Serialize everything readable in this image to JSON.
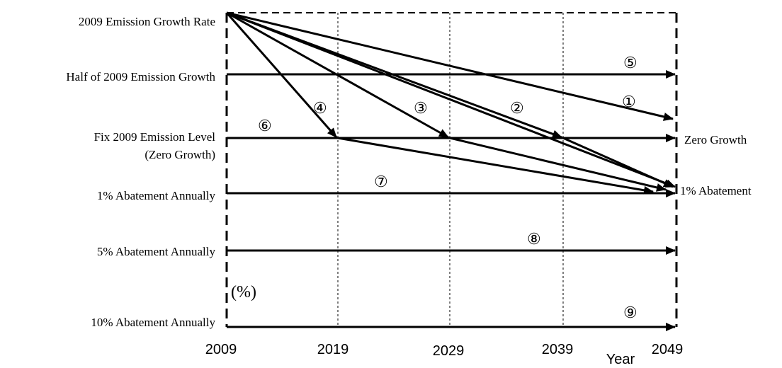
{
  "row_labels": [
    "2009 Emission Growth Rate",
    "Half of 2009 Emission Growth",
    "Fix 2009 Emission Level",
    "(Zero Growth)",
    "1% Abatement Annually",
    "5% Abatement Annually",
    "10% Abatement Annually"
  ],
  "years": [
    "2009",
    "2019",
    "2029",
    "2039",
    "2049"
  ],
  "axis_label": "Year",
  "unit": "(%)",
  "end_labels": [
    "Zero Growth",
    "1% Abatement"
  ],
  "scenarios": [
    "⑤",
    "①",
    "④",
    "③",
    "②",
    "⑥",
    "⑦",
    "⑧",
    "⑨"
  ]
}
